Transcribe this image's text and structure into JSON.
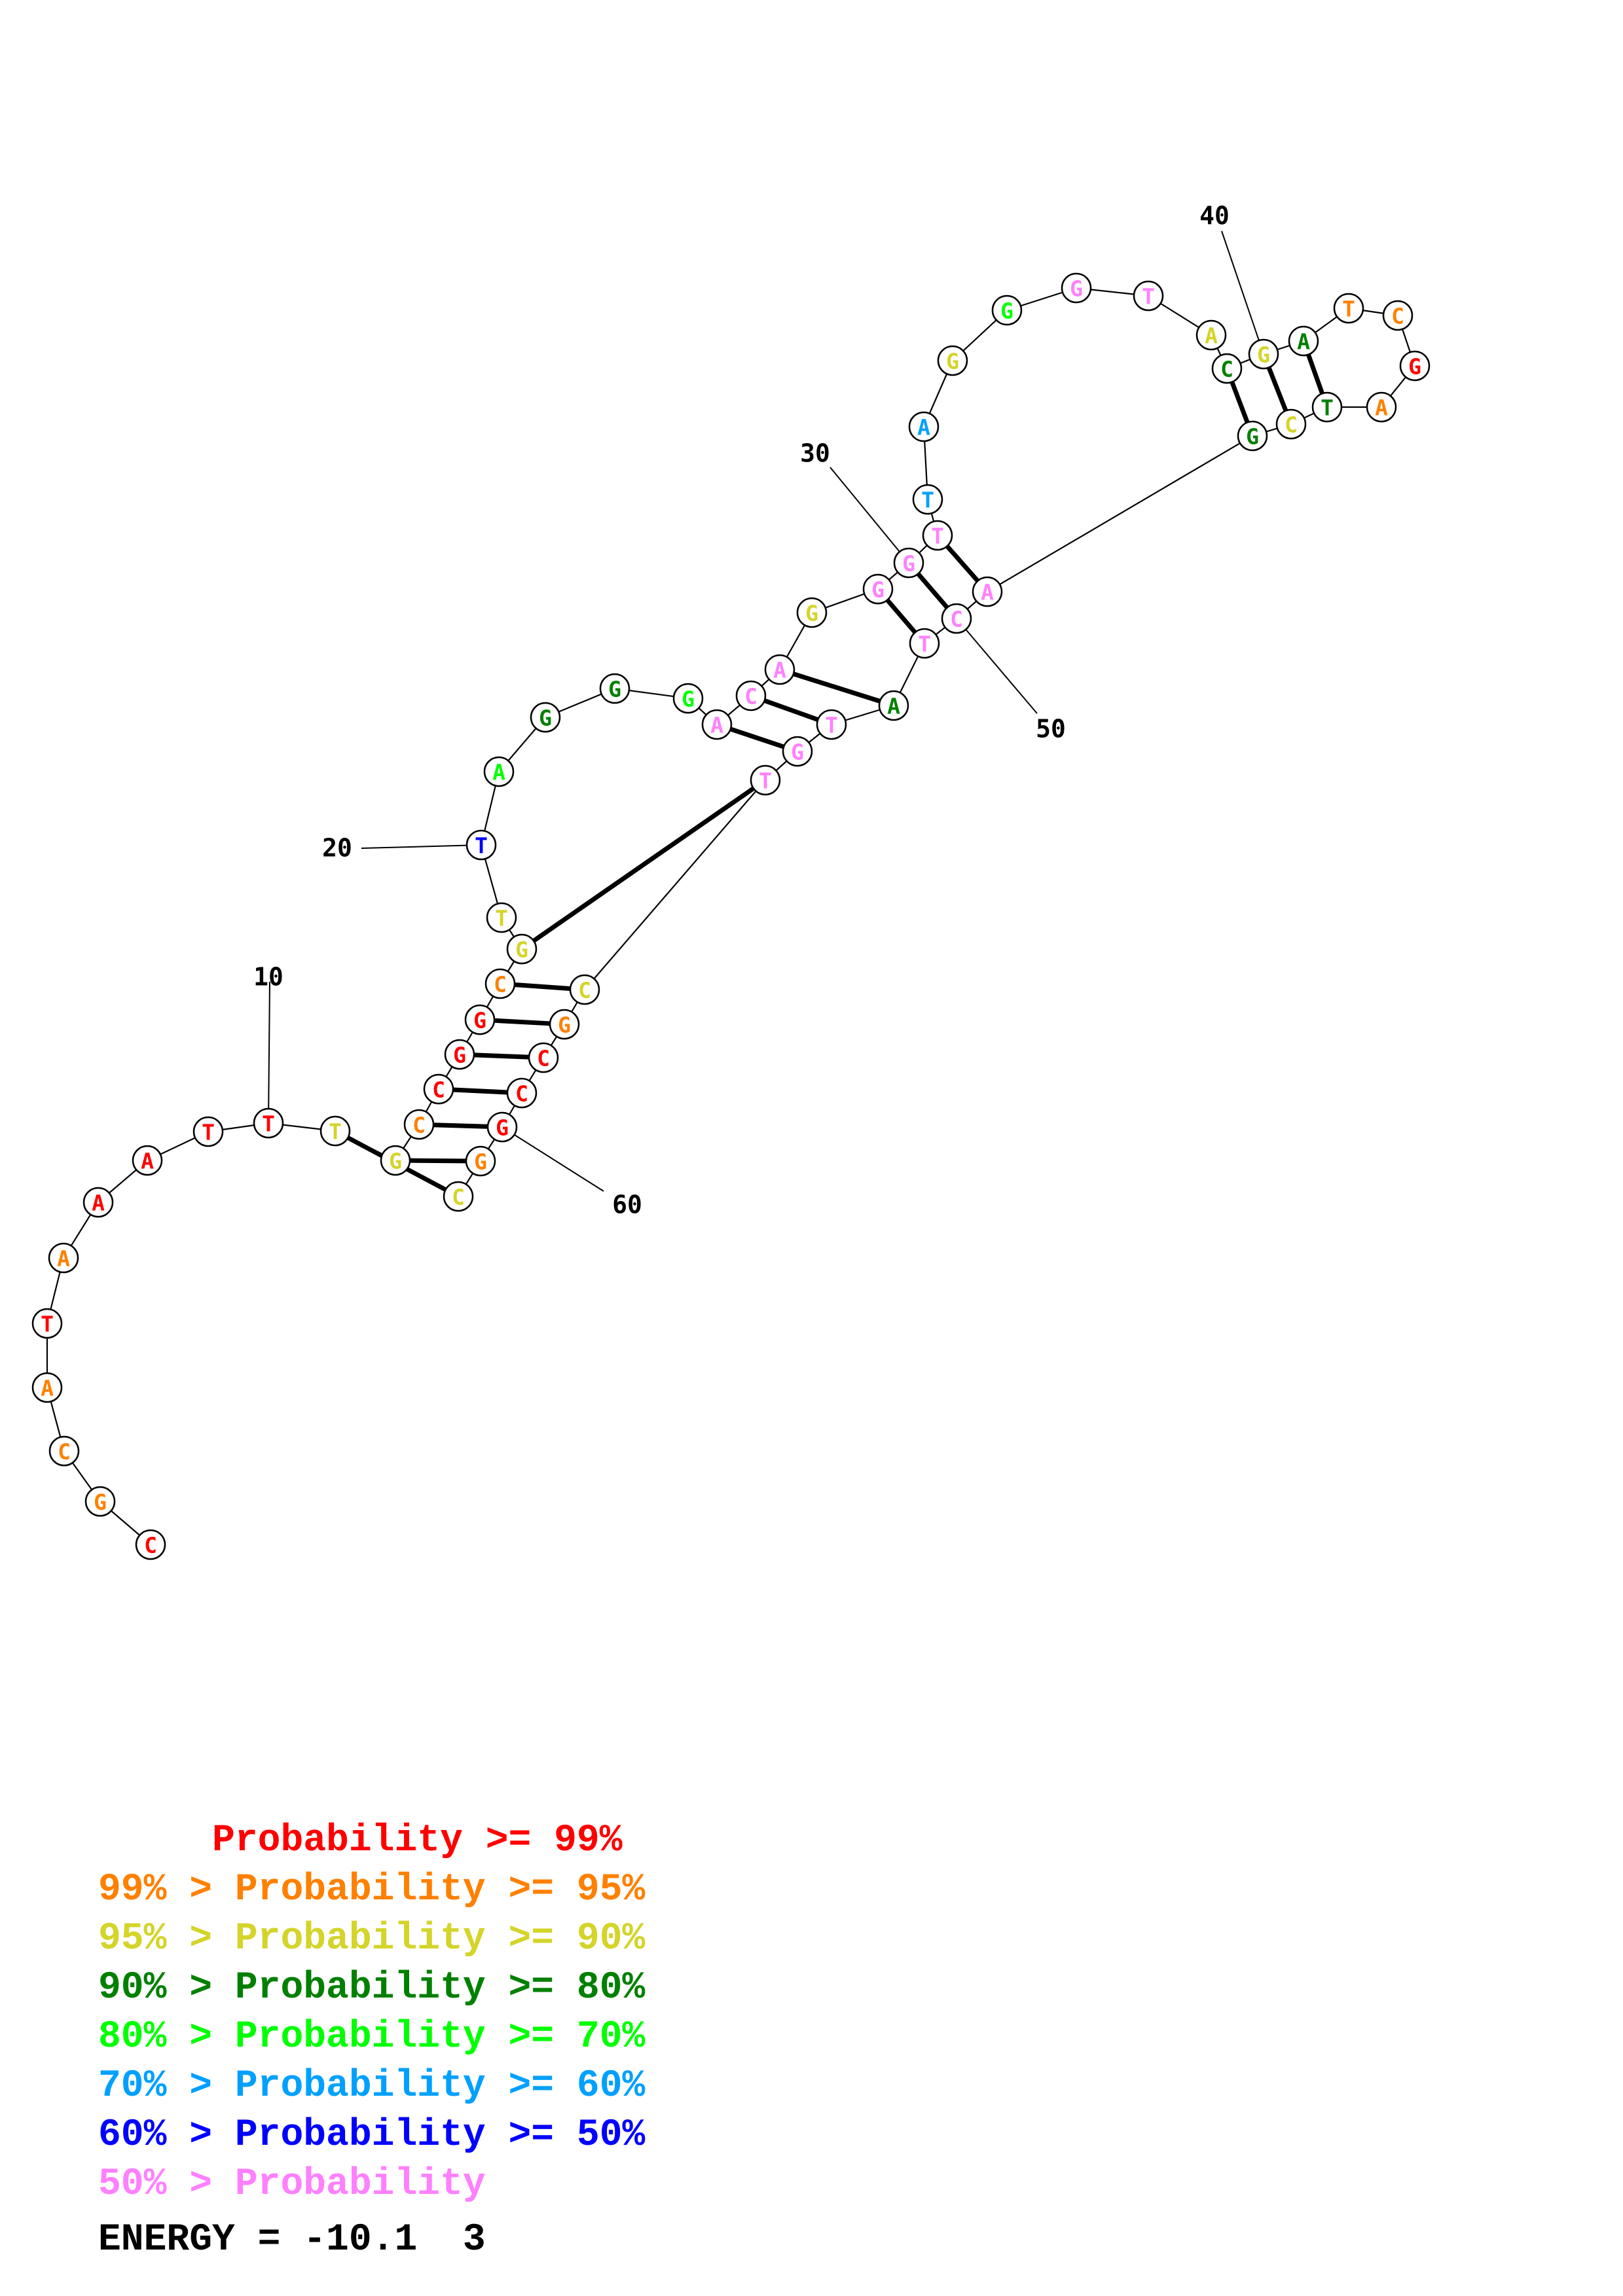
{
  "structure": {
    "sequence": [
      {
        "n": "C",
        "c": "red"
      },
      {
        "n": "G",
        "c": "orange"
      },
      {
        "n": "C",
        "c": "orange"
      },
      {
        "n": "A",
        "c": "orange"
      },
      {
        "n": "T",
        "c": "red"
      },
      {
        "n": "A",
        "c": "orange"
      },
      {
        "n": "A",
        "c": "red"
      },
      {
        "n": "A",
        "c": "red"
      },
      {
        "n": "T",
        "c": "red"
      },
      {
        "n": "T",
        "c": "red"
      },
      {
        "n": "T",
        "c": "yellow"
      },
      {
        "n": "G",
        "c": "yellow"
      },
      {
        "n": "C",
        "c": "orange"
      },
      {
        "n": "C",
        "c": "red"
      },
      {
        "n": "G",
        "c": "red"
      },
      {
        "n": "G",
        "c": "red"
      },
      {
        "n": "C",
        "c": "orange"
      },
      {
        "n": "G",
        "c": "yellow"
      },
      {
        "n": "T",
        "c": "yellow"
      },
      {
        "n": "T",
        "c": "blue"
      },
      {
        "n": "A",
        "c": "lime"
      },
      {
        "n": "G",
        "c": "darkgreen"
      },
      {
        "n": "G",
        "c": "darkgreen"
      },
      {
        "n": "G",
        "c": "lime"
      },
      {
        "n": "A",
        "c": "pink"
      },
      {
        "n": "C",
        "c": "pink"
      },
      {
        "n": "A",
        "c": "pink"
      },
      {
        "n": "G",
        "c": "yellow"
      },
      {
        "n": "G",
        "c": "pink"
      },
      {
        "n": "G",
        "c": "pink"
      },
      {
        "n": "T",
        "c": "pink"
      },
      {
        "n": "T",
        "c": "sky"
      },
      {
        "n": "A",
        "c": "sky"
      },
      {
        "n": "G",
        "c": "yellow"
      },
      {
        "n": "G",
        "c": "lime"
      },
      {
        "n": "G",
        "c": "pink"
      },
      {
        "n": "T",
        "c": "pink"
      },
      {
        "n": "A",
        "c": "yellow"
      },
      {
        "n": "C",
        "c": "darkgreen"
      },
      {
        "n": "G",
        "c": "yellow"
      },
      {
        "n": "A",
        "c": "darkgreen"
      },
      {
        "n": "T",
        "c": "orange"
      },
      {
        "n": "C",
        "c": "orange"
      },
      {
        "n": "G",
        "c": "red"
      },
      {
        "n": "A",
        "c": "orange"
      },
      {
        "n": "T",
        "c": "darkgreen"
      },
      {
        "n": "C",
        "c": "yellow"
      },
      {
        "n": "G",
        "c": "darkgreen"
      },
      {
        "n": "A",
        "c": "pink"
      },
      {
        "n": "C",
        "c": "pink"
      },
      {
        "n": "T",
        "c": "pink"
      },
      {
        "n": "A",
        "c": "darkgreen"
      },
      {
        "n": "T",
        "c": "pink"
      },
      {
        "n": "G",
        "c": "pink"
      },
      {
        "n": "T",
        "c": "pink"
      },
      {
        "n": "C",
        "c": "yellow"
      },
      {
        "n": "G",
        "c": "orange"
      },
      {
        "n": "C",
        "c": "red"
      },
      {
        "n": "C",
        "c": "red"
      },
      {
        "n": "G",
        "c": "red"
      },
      {
        "n": "G",
        "c": "orange"
      },
      {
        "n": "C",
        "c": "yellow"
      }
    ],
    "pairs": [
      [
        11,
        62
      ],
      [
        12,
        61
      ],
      [
        13,
        60
      ],
      [
        14,
        59
      ],
      [
        15,
        58
      ],
      [
        16,
        57
      ],
      [
        17,
        56
      ],
      [
        18,
        55
      ],
      [
        25,
        54
      ],
      [
        26,
        53
      ],
      [
        27,
        52
      ],
      [
        29,
        51
      ],
      [
        30,
        50
      ],
      [
        31,
        49
      ],
      [
        39,
        48
      ],
      [
        40,
        47
      ],
      [
        41,
        46
      ]
    ],
    "number_labels": [
      "10",
      "20",
      "30",
      "40",
      "50",
      "60"
    ]
  },
  "palette": {
    "red": "#ff0000",
    "orange": "#ff8000",
    "yellow": "#d4d42a",
    "darkgreen": "#008000",
    "lime": "#00ff00",
    "sky": "#00a0ff",
    "blue": "#0000ff",
    "pink": "#ff80ff"
  },
  "legend": [
    {
      "text": "     Probability >= 99%",
      "color": "#ff0000"
    },
    {
      "text": "99% > Probability >= 95%",
      "color": "#ff8000"
    },
    {
      "text": "95% > Probability >= 90%",
      "color": "#d4d42a"
    },
    {
      "text": "90% > Probability >= 80%",
      "color": "#008000"
    },
    {
      "text": "80% > Probability >= 70%",
      "color": "#00ff00"
    },
    {
      "text": "70% > Probability >= 60%",
      "color": "#00a0ff"
    },
    {
      "text": "60% > Probability >= 50%",
      "color": "#0000ff"
    },
    {
      "text": "50% > Probability",
      "color": "#ff80ff"
    }
  ],
  "energy_label": "ENERGY = -10.1  3"
}
